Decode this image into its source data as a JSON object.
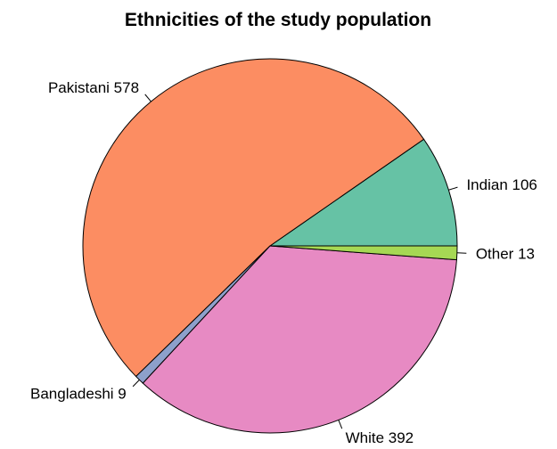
{
  "chart_data": {
    "type": "pie",
    "title": "Ethnicities of the study population",
    "slices": [
      {
        "category": "Indian",
        "value": 106,
        "label": "Indian 106",
        "color": "#66c2a5"
      },
      {
        "category": "Pakistani",
        "value": 578,
        "label": "Pakistani 578",
        "color": "#fc8d62"
      },
      {
        "category": "Bangladeshi",
        "value": 9,
        "label": "Bangladeshi 9",
        "color": "#8da0cb"
      },
      {
        "category": "White",
        "value": 392,
        "label": "White 392",
        "color": "#e78ac3"
      },
      {
        "category": "Other",
        "value": 13,
        "label": "Other 13",
        "color": "#a6d854"
      }
    ],
    "start_angle": "3 o'clock",
    "direction": "counterclockwise",
    "legend": "none"
  }
}
